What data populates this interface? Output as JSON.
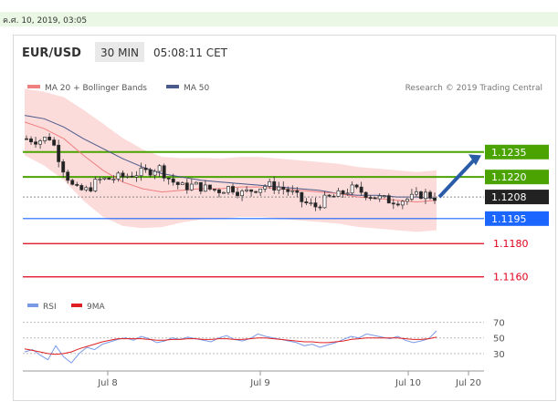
{
  "page": {
    "date_bar": "ค.ศ. 10, 2019, 03:05"
  },
  "header": {
    "symbol": "EUR/USD",
    "timeframe": "30 MIN",
    "time": "05:08:11 CET"
  },
  "legend": {
    "ma20": "MA 20 + Bollinger Bands",
    "ma50": "MA 50",
    "credit": "Research © 2019 Trading Central",
    "rsi": "RSI",
    "rsi_ma": "9MA"
  },
  "colors": {
    "ma20": "#f08080",
    "bollinger_fill": "#fcd5d5",
    "ma50": "#4a5a8a",
    "resistance": "#4aa300",
    "support_blue": "#1a66ff",
    "support_red": "#e0001a",
    "price_badge": "#222222",
    "arrow": "#2a5ca8",
    "rsi": "#7a9ae8",
    "rsi_ma": "#e02020"
  },
  "chart_data": [
    {
      "type": "line",
      "subtype": "candlestick",
      "title": "EUR/USD",
      "x_ticks": [
        "Jul 8",
        "Jul 9",
        "Jul 10",
        "Jul 20"
      ],
      "ylim": [
        1.115,
        1.1265
      ],
      "series": [
        {
          "name": "MA 20 + Bollinger Bands",
          "values": [
            1.1253,
            1.1249,
            1.1243,
            1.1233,
            1.1224,
            1.1217,
            1.1213,
            1.1211,
            1.1212,
            1.1213,
            1.1213,
            1.1214,
            1.1214,
            1.1213,
            1.1212,
            1.1211,
            1.121,
            1.1208,
            1.1207,
            1.1206,
            1.1205,
            1.1206
          ]
        },
        {
          "name": "MA 50",
          "values": [
            1.1257,
            1.1255,
            1.125,
            1.1243,
            1.1237,
            1.1231,
            1.1226,
            1.1222,
            1.122,
            1.1218,
            1.1217,
            1.1216,
            1.1215,
            1.1214,
            1.1213,
            1.1212,
            1.121,
            1.1209,
            1.1209,
            1.1208,
            1.1208,
            1.1207
          ]
        }
      ],
      "close_values": [
        1.1243,
        1.1242,
        1.1244,
        1.1226,
        1.1212,
        1.1212,
        1.1218,
        1.1219,
        1.122,
        1.1222,
        1.1223,
        1.1226,
        1.1218,
        1.1214,
        1.1215,
        1.1213,
        1.1212,
        1.1214,
        1.121,
        1.1213,
        1.1215,
        1.1214,
        1.1211,
        1.1205,
        1.1202,
        1.1207,
        1.1209,
        1.1213,
        1.1211,
        1.1208,
        1.1206,
        1.1206,
        1.1207,
        1.121,
        1.1208
      ],
      "levels": [
        {
          "value": "1.1235",
          "kind": "resistance",
          "color": "#4aa300"
        },
        {
          "value": "1.1220",
          "kind": "resistance",
          "color": "#4aa300"
        },
        {
          "value": "1.1208",
          "kind": "last",
          "color": "#222222"
        },
        {
          "value": "1.1195",
          "kind": "support",
          "color": "#1a66ff"
        },
        {
          "value": "1.1180",
          "kind": "support",
          "color": "#e0001a"
        },
        {
          "value": "1.1160",
          "kind": "support",
          "color": "#e0001a"
        }
      ],
      "annotation": "Up arrow projecting from 1.1208 toward 1.1235"
    },
    {
      "type": "line",
      "title": "RSI",
      "ylim": [
        10,
        80
      ],
      "y_ticks": [
        "70",
        "50",
        "30"
      ],
      "series": [
        {
          "name": "RSI",
          "values": [
            32,
            35,
            28,
            22,
            40,
            26,
            18,
            30,
            38,
            35,
            42,
            45,
            48,
            50,
            47,
            52,
            49,
            44,
            46,
            50,
            48,
            51,
            49,
            47,
            45,
            50,
            53,
            48,
            46,
            49,
            55,
            52,
            50,
            48,
            46,
            44,
            40,
            42,
            38,
            41,
            44,
            48,
            52,
            50,
            55,
            53,
            51,
            49,
            52,
            47,
            44,
            46,
            49,
            59
          ]
        },
        {
          "name": "9MA",
          "values": [
            36,
            34,
            32,
            30,
            29,
            30,
            32,
            36,
            39,
            42,
            45,
            47,
            49,
            49,
            49,
            49,
            48,
            47,
            47,
            48,
            48,
            49,
            49,
            48,
            48,
            49,
            49,
            48,
            48,
            49,
            50,
            50,
            49,
            48,
            47,
            46,
            45,
            45,
            44,
            44,
            45,
            46,
            48,
            49,
            50,
            50,
            50,
            50,
            50,
            49,
            48,
            48,
            49,
            51
          ]
        }
      ]
    }
  ]
}
